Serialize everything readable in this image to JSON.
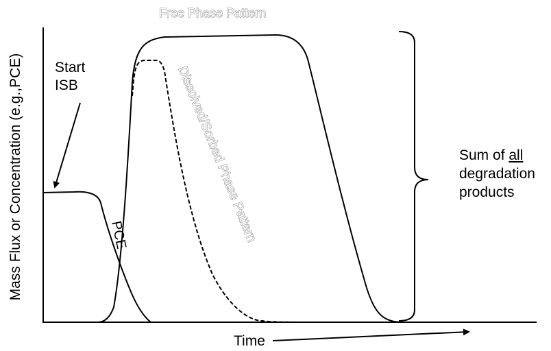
{
  "diagram": {
    "ylabel": "Mass Flux or Concentration (e.g.,PCE)",
    "xlabel": "Time",
    "start_label": {
      "line1": "Start",
      "line2": "ISB"
    },
    "pce_label": "PCE",
    "free_phase_label": "Free Phase Pattern",
    "dissolved_label": "Dissolved/Sorbed Phase Pattern",
    "sum_label": {
      "line1_prefix": "Sum of ",
      "line1_emph": "all",
      "line2": "degradation",
      "line3": "products"
    }
  }
}
